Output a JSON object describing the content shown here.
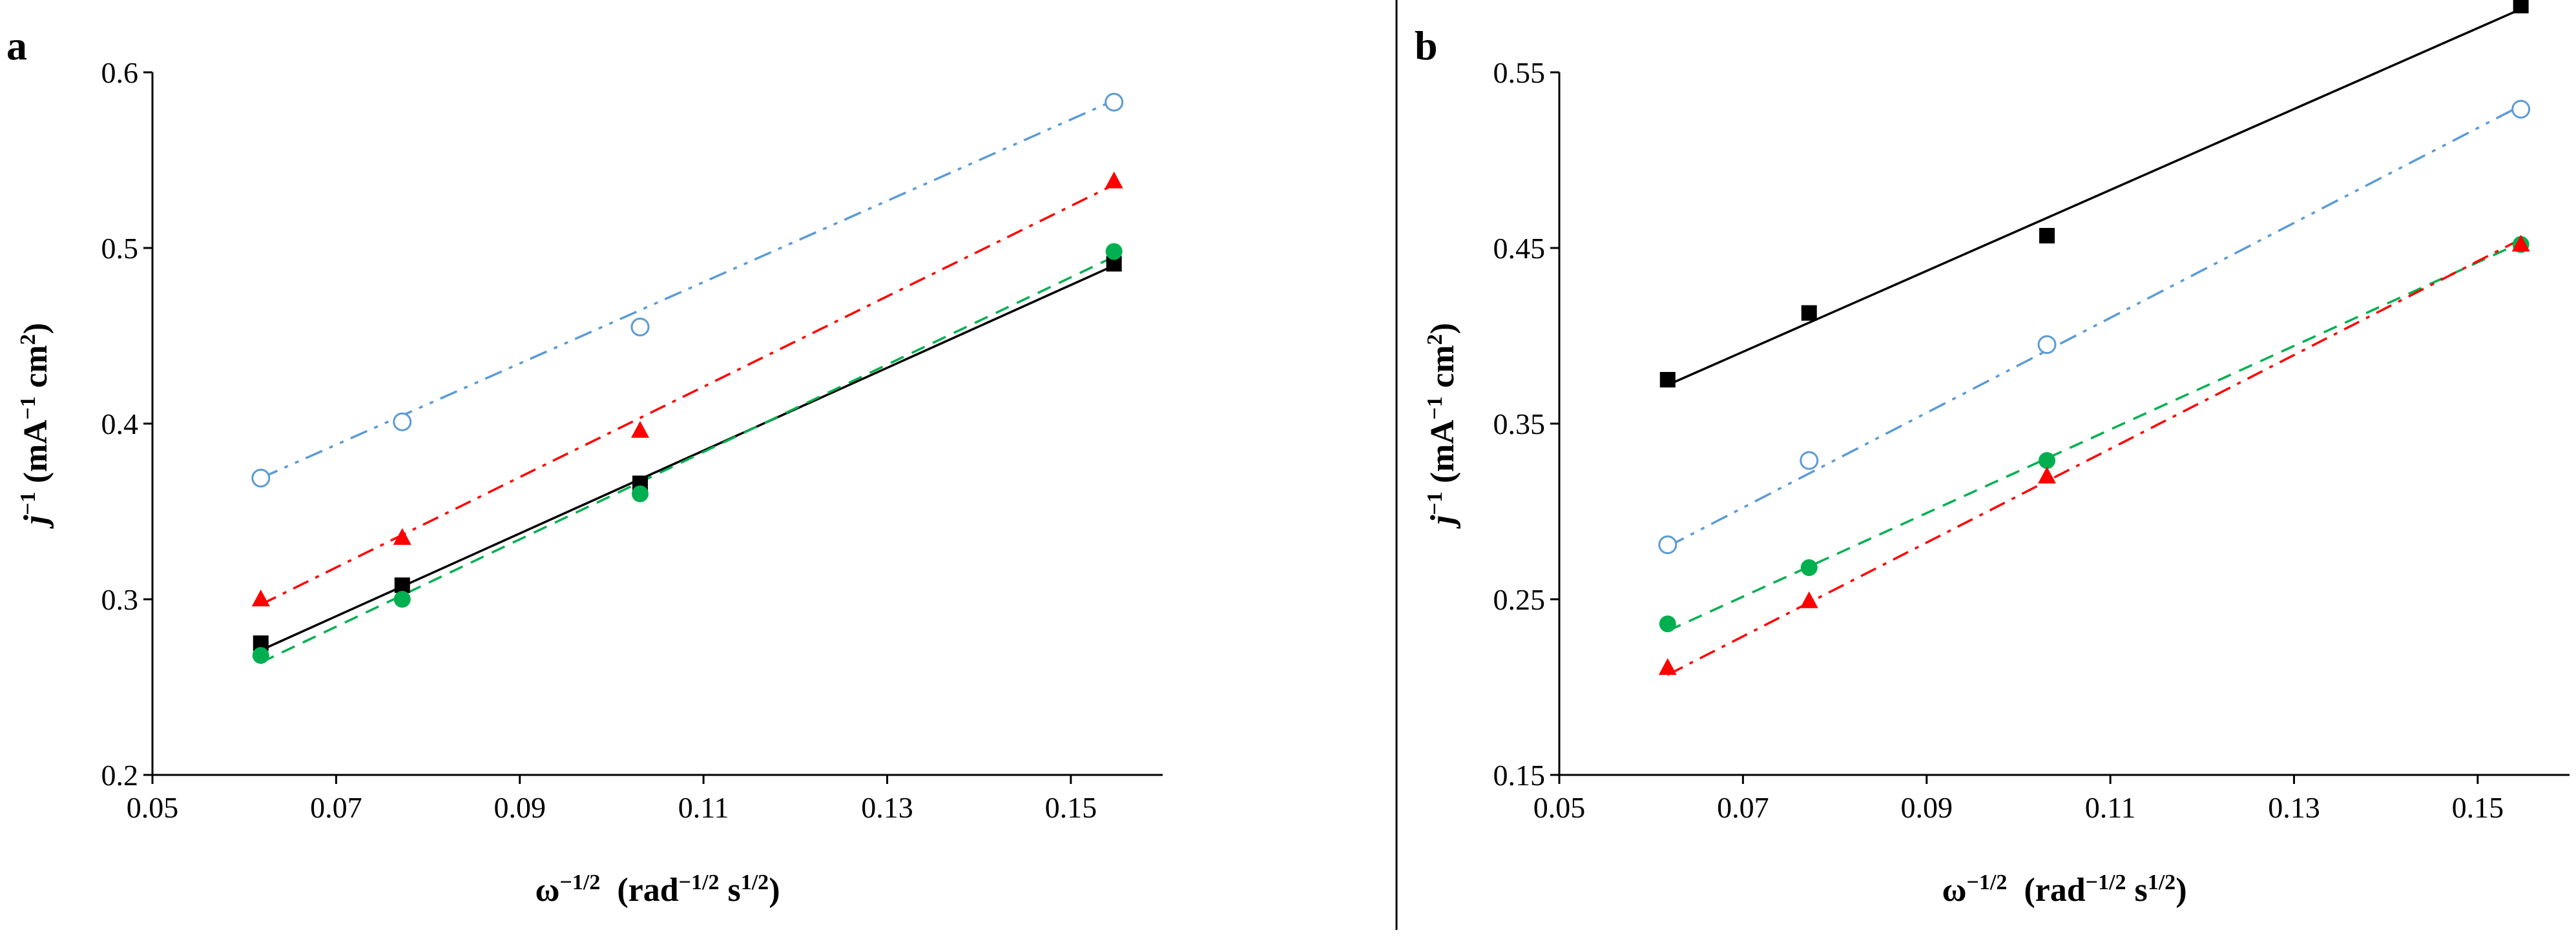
{
  "chart_data": [
    {
      "panel": "a",
      "type": "scatter",
      "xlabel": {
        "symbol": "ω",
        "symbol_exp": "−1/2",
        "unit_a": "(rad",
        "unit_a_exp": "−1/2",
        "unit_b": " s",
        "unit_b_exp": "1/2",
        "unit_end": ")"
      },
      "ylabel": {
        "symbol": "j",
        "symbol_exp": "−1",
        "unit_a": " (mA",
        "unit_a_exp": "−1",
        "unit_b": " cm",
        "unit_b_exp": "2",
        "unit_end": ")"
      },
      "xlim": [
        0.05,
        0.16
      ],
      "ylim": [
        0.2,
        0.6
      ],
      "x_ticks": [
        "0.05",
        "0.07",
        "0.09",
        "0.11",
        "0.13",
        "0.15"
      ],
      "y_ticks": [
        "0.2",
        "0.3",
        "0.4",
        "0.5",
        "0.6"
      ],
      "x": [
        0.0618,
        0.0772,
        0.1031,
        0.1547
      ],
      "series": [
        {
          "name": "open-circle",
          "marker": "circle-open",
          "color": "#5b9bd5",
          "dash": "dashdotdot",
          "values": [
            0.369,
            0.401,
            0.455,
            0.583
          ],
          "fit": [
            0.0618,
            0.369,
            0.1547,
            0.584
          ]
        },
        {
          "name": "triangle",
          "marker": "triangle",
          "color": "#ff0000",
          "dash": "dashdot",
          "values": [
            0.3,
            0.335,
            0.396,
            0.538
          ],
          "fit": [
            0.0618,
            0.297,
            0.1547,
            0.536
          ]
        },
        {
          "name": "square",
          "marker": "square",
          "color": "#000000",
          "dash": "solid",
          "values": [
            0.275,
            0.308,
            0.366,
            0.491
          ],
          "fit": [
            0.0618,
            0.271,
            0.1547,
            0.49
          ]
        },
        {
          "name": "filled-circle",
          "marker": "circle",
          "color": "#00b050",
          "dash": "dash",
          "values": [
            0.268,
            0.3,
            0.36,
            0.498
          ],
          "fit": [
            0.0618,
            0.264,
            0.1547,
            0.495
          ]
        }
      ]
    },
    {
      "panel": "b",
      "type": "scatter",
      "xlabel": {
        "symbol": "ω",
        "symbol_exp": "−1/2",
        "unit_a": "(rad",
        "unit_a_exp": "−1/2",
        "unit_b": " s",
        "unit_b_exp": "1/2",
        "unit_end": ")"
      },
      "ylabel": {
        "symbol": "j",
        "symbol_exp": "−1",
        "unit_a": " (mA",
        "unit_a_exp": "−1",
        "unit_b": " cm",
        "unit_b_exp": "2",
        "unit_end": ")"
      },
      "xlim": [
        0.05,
        0.16
      ],
      "ylim": [
        0.15,
        0.55
      ],
      "x_ticks": [
        "0.05",
        "0.07",
        "0.09",
        "0.11",
        "0.13",
        "0.15"
      ],
      "y_ticks": [
        "0.15",
        "0.25",
        "0.35",
        "0.45",
        "0.55"
      ],
      "x": [
        0.0618,
        0.0772,
        0.1031,
        0.1547
      ],
      "series": [
        {
          "name": "square",
          "marker": "square",
          "color": "#000000",
          "dash": "solid",
          "values": [
            0.375,
            0.413,
            0.457,
            0.588
          ],
          "fit": [
            0.0618,
            0.372,
            0.1547,
            0.586
          ]
        },
        {
          "name": "open-circle",
          "marker": "circle-open",
          "color": "#5b9bd5",
          "dash": "dashdotdot",
          "values": [
            0.281,
            0.329,
            0.395,
            0.529
          ],
          "fit": [
            0.0618,
            0.28,
            0.1547,
            0.531
          ]
        },
        {
          "name": "filled-circle",
          "marker": "circle",
          "color": "#00b050",
          "dash": "dash",
          "values": [
            0.236,
            0.268,
            0.329,
            0.452
          ],
          "fit": [
            0.0618,
            0.232,
            0.1547,
            0.453
          ]
        },
        {
          "name": "triangle",
          "marker": "triangle",
          "color": "#ff0000",
          "dash": "dashdot",
          "values": [
            0.211,
            0.249,
            0.32,
            0.452
          ],
          "fit": [
            0.0618,
            0.207,
            0.1547,
            0.455
          ]
        }
      ]
    }
  ]
}
